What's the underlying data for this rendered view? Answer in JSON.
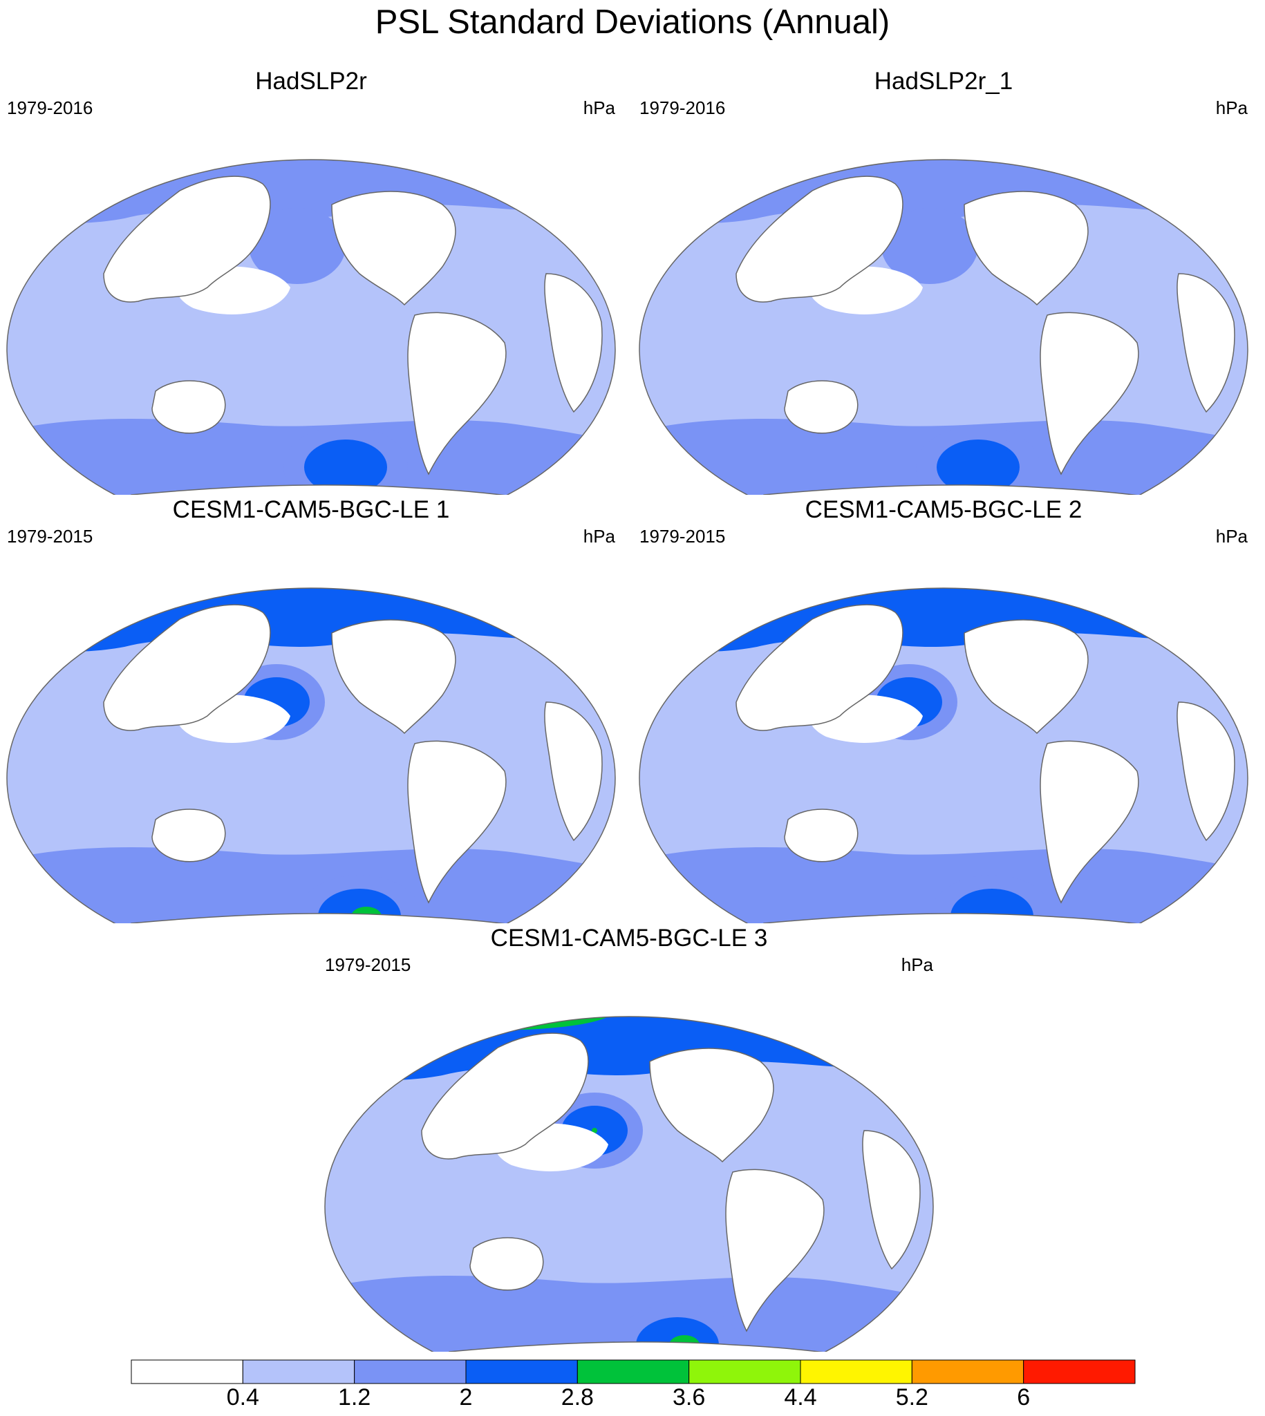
{
  "title": "PSL Standard Deviations (Annual)",
  "panels": [
    {
      "title": "HadSLP2r",
      "period": "1979-2016",
      "units": "hPa"
    },
    {
      "title": "HadSLP2r_1",
      "period": "1979-2016",
      "units": "hPa"
    },
    {
      "title": "CESM1-CAM5-BGC-LE 1",
      "period": "1979-2015",
      "units": "hPa"
    },
    {
      "title": "CESM1-CAM5-BGC-LE 2",
      "period": "1979-2015",
      "units": "hPa"
    },
    {
      "title": "CESM1-CAM5-BGC-LE 3",
      "period": "1979-2015",
      "units": "hPa"
    }
  ],
  "colorbar": {
    "labels": [
      "0.4",
      "1.2",
      "2",
      "2.8",
      "3.6",
      "4.4",
      "5.2",
      "6"
    ],
    "colors": [
      "#ffffff",
      "#b4c3fa",
      "#7a93f5",
      "#0a5ef5",
      "#00c23a",
      "#8ff50a",
      "#fff500",
      "#ff9a00",
      "#ff1a00"
    ]
  },
  "map_colors": {
    "ocean_low": "#b4c3fa",
    "ocean_mid": "#7a93f5",
    "high": "#0a5ef5",
    "peak": "#00c23a",
    "land": "#ffffff",
    "coast": "#666666"
  }
}
